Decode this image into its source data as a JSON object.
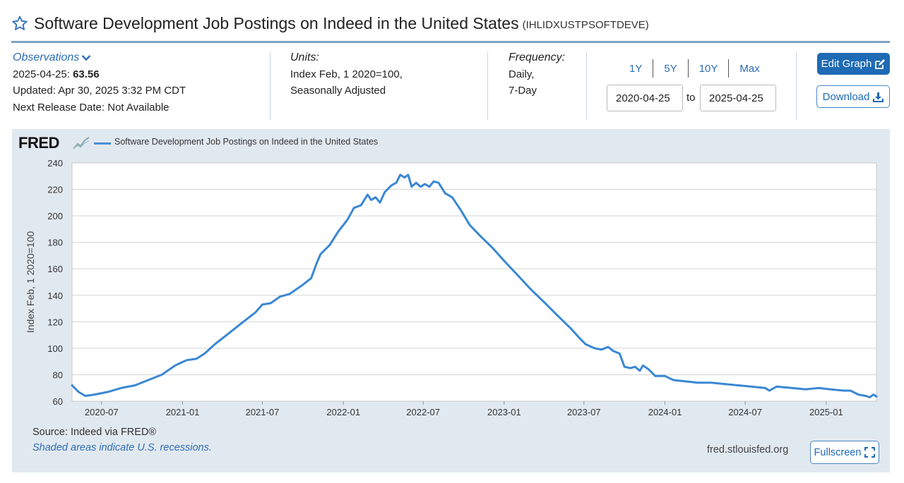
{
  "header": {
    "title": "Software Development Job Postings on Indeed in the United States",
    "series_id": "(IHLIDXUSTPSOFTDEVE)",
    "star_icon": "star-outline-icon"
  },
  "observations": {
    "label": "Observations",
    "date": "2025-04-25:",
    "value": "63.56",
    "updated": "Updated: Apr 30, 2025 3:32 PM CDT",
    "next_release": "Next Release Date: Not Available"
  },
  "units": {
    "label": "Units:",
    "line1": "Index Feb, 1 2020=100,",
    "line2": "Seasonally Adjusted"
  },
  "frequency": {
    "label": "Frequency:",
    "line1": "Daily,",
    "line2": "7-Day"
  },
  "range": {
    "tabs": [
      "1Y",
      "5Y",
      "10Y",
      "Max"
    ],
    "start": "2020-04-25",
    "to_label": "to",
    "end": "2025-04-25"
  },
  "buttons": {
    "edit_graph": "Edit Graph",
    "download": "Download",
    "fullscreen": "Fullscreen"
  },
  "footer": {
    "source": "Source: Indeed via FRED®",
    "recession_note": "Shaded areas indicate U.S. recessions.",
    "url": "fred.stlouisfed.org"
  },
  "logo": {
    "text": "FRED"
  },
  "colors": {
    "series": "#3a87d3",
    "accent": "#1f6ab5",
    "panel": "#e1e9f0"
  },
  "chart_data": {
    "type": "line",
    "title": "Software Development Job Postings on Indeed in the United States",
    "xlabel": "",
    "ylabel": "Index Feb, 1 2020=100",
    "ylim": [
      60,
      240
    ],
    "yticks": [
      "60",
      "80",
      "100",
      "120",
      "140",
      "160",
      "180",
      "200",
      "220",
      "240"
    ],
    "xlim": [
      "2020-04-25",
      "2025-04-25"
    ],
    "xticks": [
      {
        "label": "2020-07",
        "date": "2020-07-01"
      },
      {
        "label": "2021-01",
        "date": "2021-01-01"
      },
      {
        "label": "2021-07",
        "date": "2021-07-01"
      },
      {
        "label": "2022-01",
        "date": "2022-01-01"
      },
      {
        "label": "2022-07",
        "date": "2022-07-01"
      },
      {
        "label": "2023-01",
        "date": "2023-01-01"
      },
      {
        "label": "2023-07",
        "date": "2023-07-01"
      },
      {
        "label": "2024-01",
        "date": "2024-01-01"
      },
      {
        "label": "2024-07",
        "date": "2024-07-01"
      },
      {
        "label": "2025-01",
        "date": "2025-01-01"
      }
    ],
    "grid": true,
    "legend": "top-left",
    "series": [
      {
        "name": "Software Development Job Postings on Indeed in the United States",
        "points": [
          [
            "2020-04-25",
            72
          ],
          [
            "2020-05-10",
            67
          ],
          [
            "2020-05-25",
            64
          ],
          [
            "2020-06-15",
            65
          ],
          [
            "2020-07-15",
            67
          ],
          [
            "2020-08-15",
            70
          ],
          [
            "2020-09-15",
            72
          ],
          [
            "2020-10-15",
            76
          ],
          [
            "2020-11-15",
            80
          ],
          [
            "2020-12-15",
            87
          ],
          [
            "2021-01-10",
            91
          ],
          [
            "2021-02-01",
            92
          ],
          [
            "2021-02-20",
            96
          ],
          [
            "2021-03-15",
            103
          ],
          [
            "2021-04-15",
            111
          ],
          [
            "2021-05-15",
            119
          ],
          [
            "2021-06-15",
            127
          ],
          [
            "2021-07-01",
            133
          ],
          [
            "2021-07-20",
            134
          ],
          [
            "2021-08-10",
            139
          ],
          [
            "2021-09-01",
            141
          ],
          [
            "2021-10-01",
            148
          ],
          [
            "2021-10-20",
            153
          ],
          [
            "2021-11-01",
            164
          ],
          [
            "2021-11-10",
            171
          ],
          [
            "2021-12-01",
            178
          ],
          [
            "2021-12-20",
            188
          ],
          [
            "2022-01-10",
            197
          ],
          [
            "2022-01-25",
            206
          ],
          [
            "2022-02-10",
            208
          ],
          [
            "2022-02-25",
            216
          ],
          [
            "2022-03-05",
            212
          ],
          [
            "2022-03-15",
            214
          ],
          [
            "2022-03-25",
            210
          ],
          [
            "2022-04-05",
            218
          ],
          [
            "2022-04-20",
            223
          ],
          [
            "2022-05-01",
            225
          ],
          [
            "2022-05-10",
            231
          ],
          [
            "2022-05-20",
            229
          ],
          [
            "2022-05-28",
            231
          ],
          [
            "2022-06-05",
            222
          ],
          [
            "2022-06-15",
            225
          ],
          [
            "2022-06-25",
            222
          ],
          [
            "2022-07-05",
            224
          ],
          [
            "2022-07-15",
            222
          ],
          [
            "2022-07-25",
            226
          ],
          [
            "2022-08-05",
            225
          ],
          [
            "2022-08-20",
            217
          ],
          [
            "2022-09-05",
            214
          ],
          [
            "2022-09-25",
            204
          ],
          [
            "2022-10-15",
            193
          ],
          [
            "2022-11-10",
            184
          ],
          [
            "2022-12-05",
            176
          ],
          [
            "2023-01-01",
            166
          ],
          [
            "2023-02-01",
            155
          ],
          [
            "2023-03-01",
            145
          ],
          [
            "2023-04-01",
            135
          ],
          [
            "2023-05-01",
            125
          ],
          [
            "2023-06-01",
            115
          ],
          [
            "2023-06-20",
            108
          ],
          [
            "2023-07-05",
            103
          ],
          [
            "2023-07-25",
            100
          ],
          [
            "2023-08-10",
            99
          ],
          [
            "2023-08-25",
            101
          ],
          [
            "2023-09-05",
            98
          ],
          [
            "2023-09-20",
            96
          ],
          [
            "2023-10-01",
            86
          ],
          [
            "2023-10-15",
            85
          ],
          [
            "2023-10-25",
            86
          ],
          [
            "2023-11-05",
            83
          ],
          [
            "2023-11-12",
            87
          ],
          [
            "2023-11-25",
            84
          ],
          [
            "2023-12-10",
            79
          ],
          [
            "2024-01-01",
            79
          ],
          [
            "2024-01-20",
            76
          ],
          [
            "2024-02-15",
            75
          ],
          [
            "2024-03-15",
            74
          ],
          [
            "2024-04-15",
            74
          ],
          [
            "2024-05-15",
            73
          ],
          [
            "2024-06-15",
            72
          ],
          [
            "2024-07-15",
            71
          ],
          [
            "2024-08-15",
            70
          ],
          [
            "2024-08-25",
            68
          ],
          [
            "2024-09-10",
            71
          ],
          [
            "2024-10-15",
            70
          ],
          [
            "2024-11-15",
            69
          ],
          [
            "2024-12-15",
            70
          ],
          [
            "2025-01-10",
            69
          ],
          [
            "2025-02-10",
            68
          ],
          [
            "2025-02-25",
            68
          ],
          [
            "2025-03-15",
            65
          ],
          [
            "2025-04-01",
            64
          ],
          [
            "2025-04-10",
            63
          ],
          [
            "2025-04-18",
            65
          ],
          [
            "2025-04-25",
            63.56
          ]
        ]
      }
    ]
  }
}
